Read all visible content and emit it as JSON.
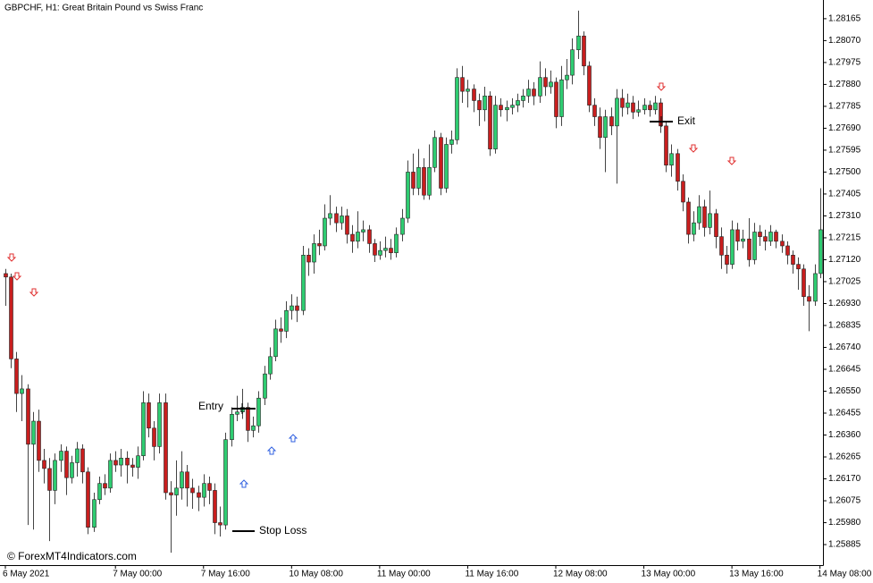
{
  "chart_data": {
    "type": "candlestick",
    "title": "GBPCHF, H1:  Great Britain Pound vs Swiss Franc",
    "source": "© ForexMT4Indicators.com",
    "annotations": [
      "Entry",
      "Exit",
      "Stop Loss"
    ],
    "up_color": "#2ecc71",
    "down_color": "#c81e1e",
    "categories": [
      "6 May 2021",
      null,
      null,
      null,
      null,
      null,
      null,
      null,
      null,
      null,
      null,
      null,
      null,
      null,
      null,
      null,
      null,
      null,
      null,
      null,
      "7 May 00:00",
      null,
      null,
      null,
      null,
      null,
      null,
      null,
      null,
      null,
      null,
      null,
      null,
      null,
      null,
      null,
      "7 May 16:00",
      null,
      null,
      null,
      null,
      null,
      null,
      null,
      null,
      null,
      null,
      null,
      null,
      null,
      null,
      null,
      "10 May 08:00",
      null,
      null,
      null,
      null,
      null,
      null,
      null,
      null,
      null,
      null,
      null,
      null,
      null,
      null,
      null,
      "11 May 00:00",
      null,
      null,
      null,
      null,
      null,
      null,
      null,
      null,
      null,
      null,
      null,
      null,
      null,
      null,
      null,
      "11 May 16:00",
      null,
      null,
      null,
      null,
      null,
      null,
      null,
      null,
      null,
      null,
      null,
      null,
      null,
      null,
      null,
      "12 May 08:00",
      null,
      null,
      null,
      null,
      null,
      null,
      null,
      null,
      null,
      null,
      null,
      null,
      null,
      null,
      null,
      "13 May 00:00",
      null,
      null,
      null,
      null,
      null,
      null,
      null,
      null,
      null,
      null,
      null,
      null,
      null,
      null,
      null,
      "13 May 16:00",
      null,
      null,
      null,
      null,
      null,
      null,
      null,
      null,
      null,
      null,
      null,
      null,
      null,
      null,
      null,
      "14 May 08:00"
    ],
    "open": [
      1.2706,
      1.27045,
      1.2669,
      1.2654,
      1.2656,
      1.2632,
      1.2642,
      1.2625,
      1.26215,
      1.2612,
      1.2625,
      1.2629,
      1.26175,
      1.2624,
      1.263,
      1.262,
      1.2596,
      1.2608,
      1.2615,
      1.2613,
      1.2625,
      1.2623,
      1.2626,
      1.2623,
      1.2622,
      1.2627,
      1.265,
      1.2639,
      1.2631,
      1.265,
      1.2611,
      1.261,
      1.2613,
      1.262,
      1.2613,
      1.2611,
      1.2609,
      1.2615,
      1.2612,
      1.2598,
      1.2597,
      1.2634,
      1.2645,
      1.2646,
      1.2648,
      1.2638,
      1.264,
      1.2652,
      1.26625,
      1.267,
      1.2682,
      1.2681,
      1.269,
      1.2692,
      1.269,
      1.2714,
      1.2711,
      1.2719,
      1.2718,
      1.273,
      1.2732,
      1.2728,
      1.2731,
      1.2723,
      1.272,
      1.2724,
      1.2725,
      1.2719,
      1.2714,
      1.2716,
      1.2717,
      1.2715,
      1.2723,
      1.273,
      1.275,
      1.2743,
      1.2752,
      1.274,
      1.2752,
      1.2765,
      1.2743,
      1.2762,
      1.2764,
      1.2791,
      1.2785,
      1.2786,
      1.2781,
      1.2777,
      1.2783,
      1.276,
      1.2779,
      1.2777,
      1.2778,
      1.2779,
      1.2781,
      1.2783,
      1.2786,
      1.2783,
      1.2791,
      1.2787,
      1.2789,
      1.2774,
      1.279,
      1.2792,
      1.2803,
      1.2809,
      1.2796,
      1.2779,
      1.2774,
      1.2765,
      1.2774,
      1.277,
      1.2782,
      1.2778,
      1.278,
      1.2776,
      1.2777,
      1.2779,
      1.2777,
      1.278,
      1.277,
      1.2753,
      1.2758,
      1.2746,
      1.2737,
      1.2723,
      1.2728,
      1.2735,
      1.2726,
      1.2732,
      1.2722,
      1.2714,
      1.271,
      1.2725,
      1.272,
      1.2721,
      1.2712,
      1.2724,
      1.2722,
      1.272,
      1.2724,
      1.272,
      1.2718,
      1.2714,
      1.271,
      1.2708,
      1.2696,
      1.2694,
      1.2706
    ],
    "high": [
      1.2708,
      1.2706,
      1.2672,
      1.2662,
      1.2658,
      1.2646,
      1.2647,
      1.263,
      1.2626,
      1.2628,
      1.2632,
      1.2631,
      1.2627,
      1.2633,
      1.2632,
      1.2622,
      1.2611,
      1.2618,
      1.2619,
      1.2628,
      1.2629,
      1.263,
      1.2629,
      1.2626,
      1.2631,
      1.2655,
      1.2654,
      1.2642,
      1.2654,
      1.2654,
      1.2616,
      1.2625,
      1.2629,
      1.2623,
      1.2617,
      1.2614,
      1.2619,
      1.2618,
      1.2615,
      1.2605,
      1.2637,
      1.2648,
      1.2653,
      1.2656,
      1.265,
      1.2644,
      1.2655,
      1.2666,
      1.2674,
      1.2686,
      1.2687,
      1.2694,
      1.2697,
      1.2696,
      1.2718,
      1.2717,
      1.2723,
      1.2725,
      1.2736,
      1.274,
      1.2735,
      1.2735,
      1.2734,
      1.2727,
      1.2733,
      1.2729,
      1.2727,
      1.2721,
      1.272,
      1.2722,
      1.2721,
      1.2726,
      1.2734,
      1.2755,
      1.2758,
      1.276,
      1.2756,
      1.2762,
      1.2768,
      1.2767,
      1.2765,
      1.2768,
      1.2795,
      1.2796,
      1.279,
      1.2788,
      1.2784,
      1.2787,
      1.2785,
      1.2783,
      1.2782,
      1.2781,
      1.2782,
      1.2784,
      1.2786,
      1.279,
      1.2789,
      1.2798,
      1.2795,
      1.2794,
      1.2791,
      1.2796,
      1.2799,
      1.2808,
      1.282,
      1.2811,
      1.2798,
      1.2782,
      1.2778,
      1.2777,
      1.2778,
      1.2786,
      1.2786,
      1.2784,
      1.2783,
      1.2781,
      1.2782,
      1.2781,
      1.2783,
      1.2782,
      1.2772,
      1.2762,
      1.276,
      1.2749,
      1.2739,
      1.2733,
      1.274,
      1.2738,
      1.2742,
      1.2734,
      1.2726,
      1.2718,
      1.2729,
      1.2728,
      1.2725,
      1.273,
      1.2728,
      1.2727,
      1.2725,
      1.2727,
      1.2725,
      1.2723,
      1.272,
      1.2716,
      1.2713,
      1.271,
      1.2701,
      1.271,
      1.2743
    ],
    "low": [
      1.2692,
      1.2665,
      1.2646,
      1.2642,
      1.2597,
      1.2595,
      1.262,
      1.2615,
      1.259,
      1.2606,
      1.262,
      1.261,
      1.2615,
      1.2618,
      1.2615,
      1.2593,
      1.2594,
      1.2606,
      1.261,
      1.2611,
      1.262,
      1.2618,
      1.2615,
      1.2618,
      1.2617,
      1.2625,
      1.2635,
      1.2625,
      1.2628,
      1.2608,
      1.2585,
      1.2601,
      1.2608,
      1.2605,
      1.2604,
      1.2603,
      1.2605,
      1.2606,
      1.2593,
      1.2592,
      1.2595,
      1.2631,
      1.2642,
      1.2643,
      1.2633,
      1.2635,
      1.2637,
      1.2649,
      1.266,
      1.2668,
      1.2676,
      1.2678,
      1.2686,
      1.2685,
      1.2688,
      1.2705,
      1.2706,
      1.2714,
      1.2716,
      1.2727,
      1.2724,
      1.2725,
      1.2719,
      1.2715,
      1.2717,
      1.272,
      1.2715,
      1.2711,
      1.2712,
      1.2713,
      1.2712,
      1.2713,
      1.272,
      1.2728,
      1.274,
      1.274,
      1.2738,
      1.2738,
      1.275,
      1.274,
      1.2741,
      1.2758,
      1.2762,
      1.278,
      1.2778,
      1.2776,
      1.277,
      1.2772,
      1.2757,
      1.2758,
      1.2774,
      1.2772,
      1.2775,
      1.2776,
      1.2778,
      1.278,
      1.2779,
      1.278,
      1.2783,
      1.2784,
      1.2769,
      1.277,
      1.2786,
      1.2788,
      1.2799,
      1.2792,
      1.2776,
      1.277,
      1.276,
      1.275,
      1.2766,
      1.2745,
      1.2774,
      1.2775,
      1.2773,
      1.2774,
      1.2775,
      1.2774,
      1.2775,
      1.2767,
      1.275,
      1.2748,
      1.2742,
      1.2733,
      1.2719,
      1.272,
      1.2725,
      1.2722,
      1.2723,
      1.2717,
      1.2708,
      1.2706,
      1.2708,
      1.2716,
      1.2717,
      1.2709,
      1.271,
      1.2718,
      1.2716,
      1.2718,
      1.2717,
      1.2715,
      1.271,
      1.2706,
      1.2699,
      1.2692,
      1.2681,
      1.2692,
      1.2704
    ],
    "close": [
      1.27045,
      1.2669,
      1.2654,
      1.2656,
      1.2632,
      1.2642,
      1.2625,
      1.26215,
      1.2612,
      1.2625,
      1.2629,
      1.26175,
      1.2624,
      1.263,
      1.262,
      1.2596,
      1.2608,
      1.2615,
      1.2613,
      1.2625,
      1.2623,
      1.2626,
      1.2623,
      1.2622,
      1.2627,
      1.265,
      1.2639,
      1.2631,
      1.265,
      1.2611,
      1.261,
      1.2613,
      1.262,
      1.2613,
      1.2611,
      1.2609,
      1.2615,
      1.2612,
      1.2598,
      1.2597,
      1.2634,
      1.2645,
      1.2646,
      1.2648,
      1.2638,
      1.264,
      1.2652,
      1.26625,
      1.267,
      1.2682,
      1.2681,
      1.269,
      1.2692,
      1.269,
      1.2714,
      1.2711,
      1.2719,
      1.2718,
      1.273,
      1.2732,
      1.2728,
      1.2731,
      1.2723,
      1.272,
      1.2724,
      1.2725,
      1.2719,
      1.2714,
      1.2716,
      1.2717,
      1.2715,
      1.2723,
      1.273,
      1.275,
      1.2743,
      1.2752,
      1.274,
      1.2752,
      1.2765,
      1.2743,
      1.2762,
      1.2764,
      1.2791,
      1.2785,
      1.2786,
      1.2781,
      1.2777,
      1.2783,
      1.276,
      1.2779,
      1.2777,
      1.2778,
      1.2779,
      1.2781,
      1.2783,
      1.2786,
      1.2783,
      1.2791,
      1.2787,
      1.2789,
      1.2774,
      1.279,
      1.2792,
      1.2803,
      1.2809,
      1.2796,
      1.2779,
      1.2774,
      1.2765,
      1.2774,
      1.277,
      1.2782,
      1.2778,
      1.278,
      1.2776,
      1.2777,
      1.2779,
      1.2777,
      1.278,
      1.277,
      1.2753,
      1.2758,
      1.2746,
      1.2737,
      1.2723,
      1.2728,
      1.2735,
      1.2726,
      1.2732,
      1.2722,
      1.2714,
      1.271,
      1.2725,
      1.272,
      1.2721,
      1.2712,
      1.2724,
      1.2722,
      1.272,
      1.2724,
      1.272,
      1.2718,
      1.2714,
      1.271,
      1.2708,
      1.2696,
      1.2694,
      1.2706,
      1.2725
    ],
    "ylim": [
      1.25796,
      1.28246
    ],
    "yticks": [
      1.28165,
      {
        "value": 1.2807,
        "label": "1.28070"
      },
      1.27975,
      {
        "value": 1.2788,
        "label": "1.27880"
      },
      1.27785,
      {
        "value": 1.2769,
        "label": "1.27690"
      },
      1.27595,
      {
        "value": 1.275,
        "label": "1.27500"
      },
      1.27405,
      {
        "value": 1.2731,
        "label": "1.27310"
      },
      1.27215,
      {
        "value": 1.2712,
        "label": "1.27120"
      },
      1.27025,
      {
        "value": 1.2693,
        "label": "1.26930"
      },
      1.26835,
      {
        "value": 1.2674,
        "label": "1.26740"
      },
      1.26645,
      {
        "value": 1.2655,
        "label": "1.26550"
      },
      1.26455,
      {
        "value": 1.2636,
        "label": "1.26360"
      },
      1.26265,
      {
        "value": 1.2617,
        "label": "1.26170"
      },
      1.26075,
      {
        "value": 1.2598,
        "label": "1.25980"
      },
      1.25885
    ],
    "grid": false
  }
}
